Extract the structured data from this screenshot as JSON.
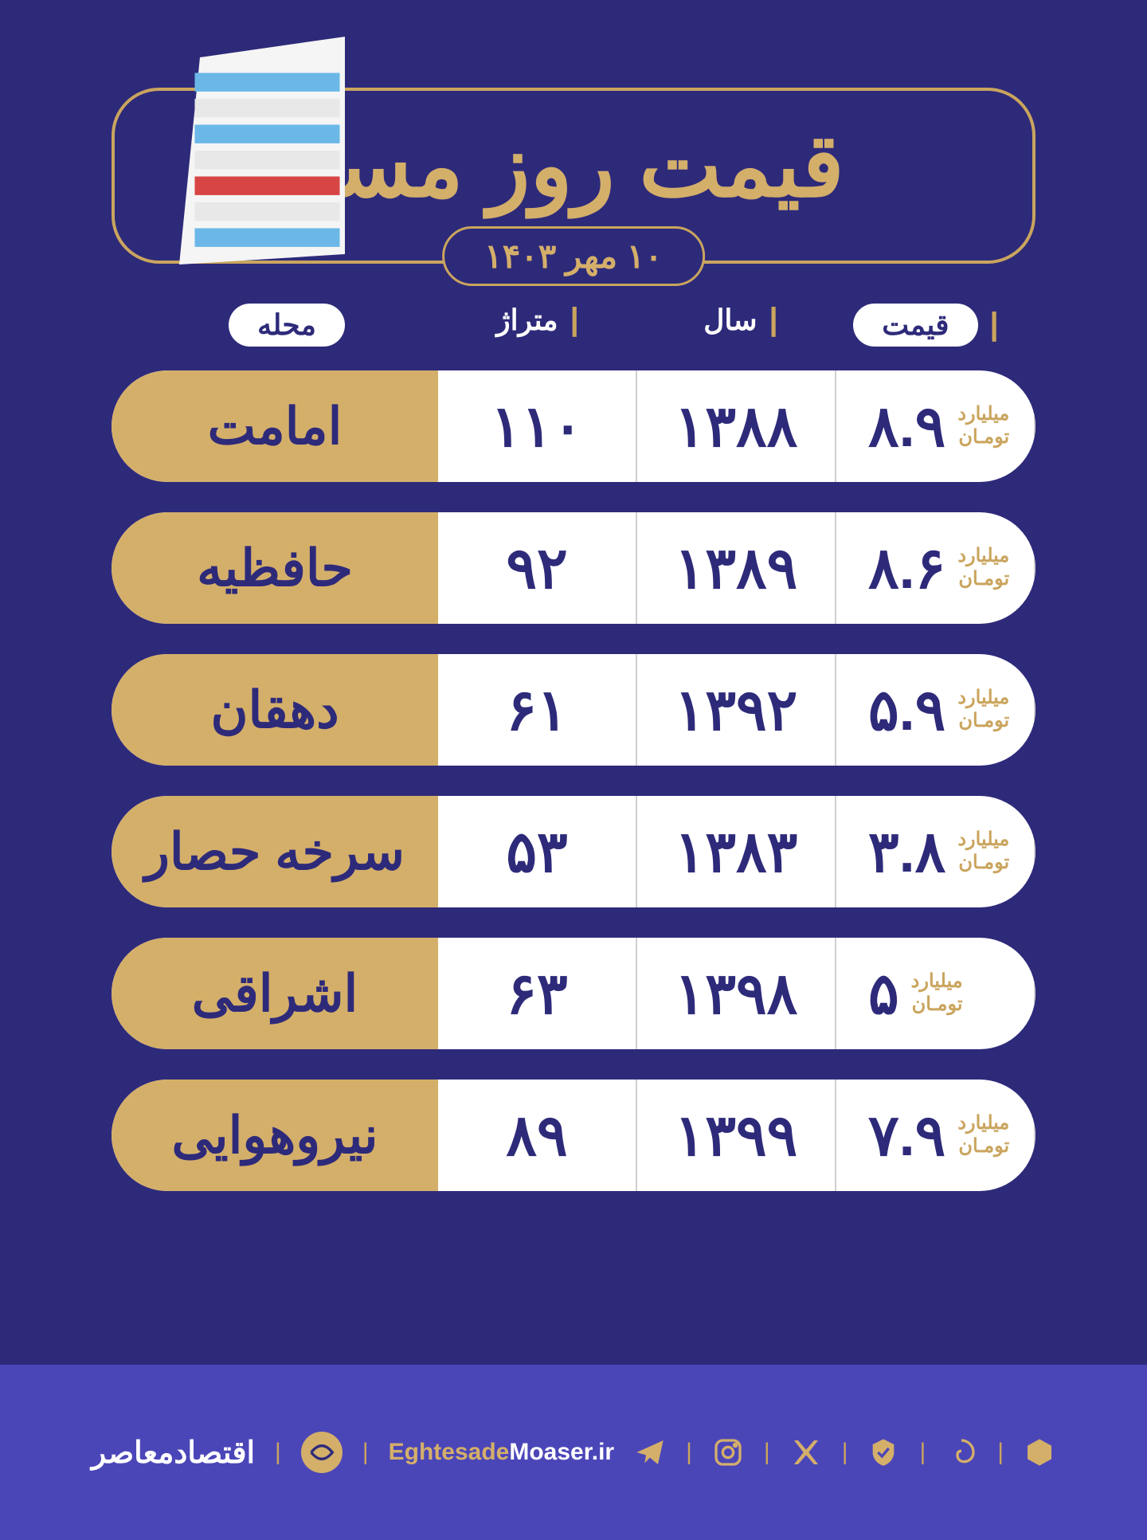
{
  "colors": {
    "background": "#2e2a7a",
    "gold": "#d4af6a",
    "goldBorder": "#caa55e",
    "white": "#ffffff",
    "navy": "#2e2a7a",
    "footer": "#4b46b8"
  },
  "header": {
    "title": "قیمت روز مسکن",
    "date": "۱۰ مهر ۱۴۰۳"
  },
  "columns": {
    "neighborhood": "محله",
    "area": "متراژ",
    "year": "سال",
    "price": "قیمت"
  },
  "unit": {
    "line1": "میلیارد",
    "line2": "تومـان"
  },
  "rows": [
    {
      "neighborhood": "امامت",
      "area": "۱۱۰",
      "year": "۱۳۸۸",
      "price": "۸.۹"
    },
    {
      "neighborhood": "حافظیه",
      "area": "۹۲",
      "year": "۱۳۸۹",
      "price": "۸.۶"
    },
    {
      "neighborhood": "دهقان",
      "area": "۶۱",
      "year": "۱۳۹۲",
      "price": "۵.۹"
    },
    {
      "neighborhood": "سرخه حصار",
      "area": "۵۳",
      "year": "۱۳۸۳",
      "price": "۳.۸"
    },
    {
      "neighborhood": "اشراقی",
      "area": "۶۳",
      "year": "۱۳۹۸",
      "price": "۵"
    },
    {
      "neighborhood": "نیروهوایی",
      "area": "۸۹",
      "year": "۱۳۹۹",
      "price": "۷.۹"
    }
  ],
  "footer": {
    "brand_fa": "اقتصادمعاصر",
    "url_gold": "Eghtesade",
    "url_white": "Moaser.ir",
    "icons": [
      "telegram",
      "instagram",
      "x",
      "shield",
      "spiral",
      "hex"
    ]
  }
}
